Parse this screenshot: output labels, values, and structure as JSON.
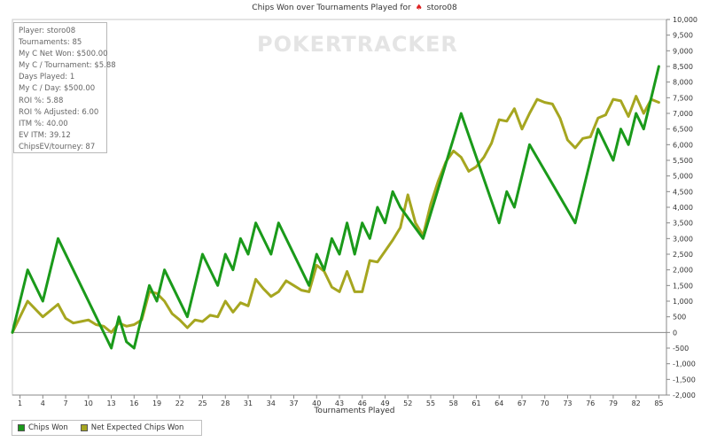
{
  "title_text": "Chips Won over Tournaments Played for",
  "title_player": "storo08",
  "watermark": "POKERTRACKER",
  "stats": [
    "Player: storo08",
    "Tournaments: 85",
    "My C Net Won: $500.00",
    "My C / Tournament: $5.88",
    "Days Played: 1",
    "My C / Day: $500.00",
    "ROI %: 5.88",
    "ROI % Adjusted: 6.00",
    "ITM %: 40.00",
    "EV ITM: 39.12",
    "ChipsEV/tourney: 87"
  ],
  "colors": {
    "chips_won": "#1a9a1a",
    "net_expected": "#a6a620",
    "zero_line": "#888888",
    "grid": "#dddddd"
  },
  "chart_data": {
    "type": "line",
    "title": "Chips Won over Tournaments Played for storo08",
    "xlabel": "Tournaments Played",
    "ylabel": "",
    "xlim": [
      0,
      86
    ],
    "ylim": [
      -2000,
      10000
    ],
    "x_ticks": [
      1,
      4,
      7,
      10,
      13,
      16,
      19,
      22,
      25,
      28,
      31,
      34,
      37,
      40,
      43,
      46,
      49,
      52,
      55,
      58,
      61,
      64,
      67,
      70,
      73,
      76,
      79,
      82,
      85
    ],
    "y_ticks": [
      -2000,
      -1500,
      -1000,
      -500,
      0,
      500,
      1000,
      1500,
      2000,
      2500,
      3000,
      3500,
      4000,
      4500,
      5000,
      5500,
      6000,
      6500,
      7000,
      7500,
      8000,
      8500,
      9000,
      9500,
      10000
    ],
    "y_tick_labels": [
      "-2,000",
      "-1,500",
      "-1,000",
      "-500",
      "0",
      "500",
      "1,000",
      "1,500",
      "2,000",
      "2,500",
      "3,000",
      "3,500",
      "4,000",
      "4,500",
      "5,000",
      "5,500",
      "6,000",
      "6,500",
      "7,000",
      "7,500",
      "8,000",
      "8,500",
      "9,000",
      "9,500",
      "10,000"
    ],
    "legend_position": "bottom-left",
    "series": [
      {
        "name": "Chips Won",
        "points": [
          [
            0,
            0
          ],
          [
            2,
            2000
          ],
          [
            4,
            1000
          ],
          [
            6,
            3000
          ],
          [
            13,
            -500
          ],
          [
            14,
            500
          ],
          [
            15,
            -300
          ],
          [
            16,
            -500
          ],
          [
            18,
            1500
          ],
          [
            19,
            1000
          ],
          [
            20,
            2000
          ],
          [
            23,
            500
          ],
          [
            25,
            2500
          ],
          [
            27,
            1500
          ],
          [
            28,
            2500
          ],
          [
            29,
            2000
          ],
          [
            30,
            3000
          ],
          [
            31,
            2500
          ],
          [
            32,
            3500
          ],
          [
            34,
            2500
          ],
          [
            35,
            3500
          ],
          [
            39,
            1500
          ],
          [
            40,
            2500
          ],
          [
            41,
            2000
          ],
          [
            42,
            3000
          ],
          [
            43,
            2500
          ],
          [
            44,
            3500
          ],
          [
            45,
            2500
          ],
          [
            46,
            3500
          ],
          [
            47,
            3000
          ],
          [
            48,
            4000
          ],
          [
            49,
            3500
          ],
          [
            50,
            4500
          ],
          [
            51,
            4000
          ],
          [
            54,
            3000
          ],
          [
            59,
            7000
          ],
          [
            64,
            3500
          ],
          [
            65,
            4500
          ],
          [
            66,
            4000
          ],
          [
            68,
            6000
          ],
          [
            74,
            3500
          ],
          [
            77,
            6500
          ],
          [
            79,
            5500
          ],
          [
            80,
            6500
          ],
          [
            81,
            6000
          ],
          [
            82,
            7000
          ],
          [
            83,
            6500
          ],
          [
            85,
            8500
          ]
        ]
      },
      {
        "name": "Net Expected Chips Won",
        "points": [
          [
            0,
            0
          ],
          [
            2,
            1000
          ],
          [
            4,
            500
          ],
          [
            5,
            700
          ],
          [
            6,
            900
          ],
          [
            7,
            450
          ],
          [
            8,
            300
          ],
          [
            9,
            350
          ],
          [
            10,
            400
          ],
          [
            11,
            250
          ],
          [
            12,
            200
          ],
          [
            13,
            0
          ],
          [
            14,
            300
          ],
          [
            15,
            200
          ],
          [
            16,
            250
          ],
          [
            17,
            400
          ],
          [
            18,
            1300
          ],
          [
            19,
            1250
          ],
          [
            20,
            1000
          ],
          [
            21,
            600
          ],
          [
            22,
            400
          ],
          [
            23,
            150
          ],
          [
            24,
            400
          ],
          [
            25,
            350
          ],
          [
            26,
            550
          ],
          [
            27,
            500
          ],
          [
            28,
            1000
          ],
          [
            29,
            650
          ],
          [
            30,
            950
          ],
          [
            31,
            850
          ],
          [
            32,
            1700
          ],
          [
            33,
            1400
          ],
          [
            34,
            1150
          ],
          [
            35,
            1300
          ],
          [
            36,
            1650
          ],
          [
            37,
            1500
          ],
          [
            38,
            1350
          ],
          [
            39,
            1300
          ],
          [
            40,
            2150
          ],
          [
            41,
            1950
          ],
          [
            42,
            1450
          ],
          [
            43,
            1300
          ],
          [
            44,
            1950
          ],
          [
            45,
            1300
          ],
          [
            46,
            1300
          ],
          [
            47,
            2300
          ],
          [
            48,
            2250
          ],
          [
            49,
            2600
          ],
          [
            50,
            2950
          ],
          [
            51,
            3350
          ],
          [
            52,
            4400
          ],
          [
            53,
            3500
          ],
          [
            54,
            3100
          ],
          [
            55,
            4100
          ],
          [
            56,
            4850
          ],
          [
            57,
            5450
          ],
          [
            58,
            5800
          ],
          [
            59,
            5600
          ],
          [
            60,
            5150
          ],
          [
            61,
            5300
          ],
          [
            62,
            5600
          ],
          [
            63,
            6050
          ],
          [
            64,
            6800
          ],
          [
            65,
            6750
          ],
          [
            66,
            7150
          ],
          [
            67,
            6500
          ],
          [
            68,
            7000
          ],
          [
            69,
            7450
          ],
          [
            70,
            7350
          ],
          [
            71,
            7300
          ],
          [
            72,
            6850
          ],
          [
            73,
            6150
          ],
          [
            74,
            5900
          ],
          [
            75,
            6200
          ],
          [
            76,
            6250
          ],
          [
            77,
            6850
          ],
          [
            78,
            6950
          ],
          [
            79,
            7450
          ],
          [
            80,
            7400
          ],
          [
            81,
            6900
          ],
          [
            82,
            7550
          ],
          [
            83,
            7000
          ],
          [
            84,
            7450
          ],
          [
            85,
            7350
          ]
        ]
      }
    ]
  },
  "legend": [
    {
      "label": "Chips Won"
    },
    {
      "label": "Net Expected Chips Won"
    }
  ]
}
